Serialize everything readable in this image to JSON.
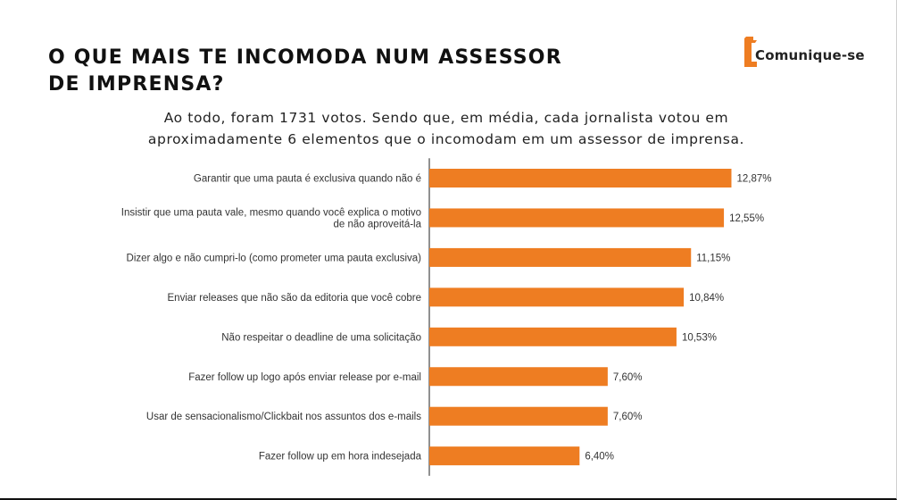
{
  "header": {
    "title": "O QUE MAIS TE INCOMODA NUM ASSESSOR DE IMPRENSA?",
    "logo_text": "Comunique-se",
    "subtitle": "Ao todo, foram 1731 votos. Sendo que, em média, cada jornalista votou em aproximadamente 6 elementos que o incomodam em um assessor de imprensa."
  },
  "colors": {
    "bar": "#EE7D22",
    "logo_orange": "#EE7D22",
    "axis": "#222222",
    "text": "#333333"
  },
  "chart_data": {
    "type": "bar",
    "orientation": "horizontal",
    "categories": [
      [
        "Garantir que uma pauta é exclusiva quando não é"
      ],
      [
        "Insistir que uma pauta vale, mesmo quando você explica o motivo",
        "de não aproveitá-la"
      ],
      [
        "Dizer algo e não cumpri-lo (como prometer uma pauta exclusiva)"
      ],
      [
        "Enviar releases que não são da editoria que você cobre"
      ],
      [
        "Não respeitar o deadline de uma solicitação"
      ],
      [
        "Fazer follow up logo após enviar release por e-mail"
      ],
      [
        "Usar de sensacionalismo/Clickbait nos assuntos dos e-mails"
      ],
      [
        "Fazer follow up em hora indesejada"
      ]
    ],
    "values": [
      12.87,
      12.55,
      11.15,
      10.84,
      10.53,
      7.6,
      7.6,
      6.4
    ],
    "value_labels": [
      "12,87%",
      "12,55%",
      "11,15%",
      "10,84%",
      "10,53%",
      "7,60%",
      "7,60%",
      "6,40%"
    ],
    "xlim": [
      0,
      14
    ],
    "grid": false,
    "legend": "none"
  }
}
